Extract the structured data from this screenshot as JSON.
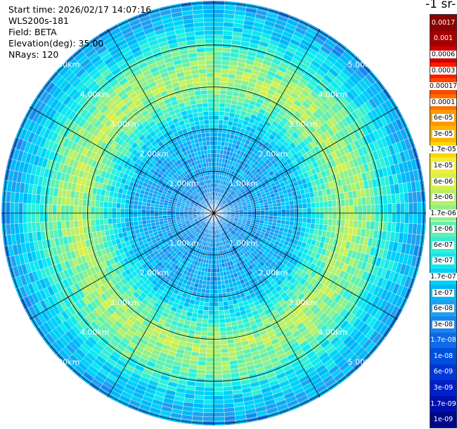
{
  "header": {
    "start_time": "Start time: 2026/02/17 14:07:16",
    "instrument": "WLS200s-181",
    "field": "Field: BETA",
    "elevation": "Elevation(deg): 35.00",
    "nrays": "NRays: 120"
  },
  "colorbar": {
    "unit_label": "-1 sr-",
    "labels": [
      "0.0017",
      "0.001",
      "0.0006",
      "0.0003",
      "0.00017",
      "0.0001",
      "6e-05",
      "3e-05",
      "1.7e-05",
      "1e-05",
      "6e-06",
      "3e-06",
      "1.7e-06",
      "1e-06",
      "6e-07",
      "3e-07",
      "1.7e-07",
      "1e-07",
      "6e-08",
      "3e-08",
      "1.7e-08",
      "1e-08",
      "6e-09",
      "3e-09",
      "1.7e-09",
      "1e-09"
    ],
    "colors": [
      "#8b0000",
      "#a50000",
      "#cc0000",
      "#ff1a00",
      "#ff4500",
      "#ff6f00",
      "#ff9800",
      "#ffb400",
      "#ffd700",
      "#f2ee3a",
      "#d7f046",
      "#b8f066",
      "#8ff08a",
      "#60f0b0",
      "#30f0d8",
      "#10e8f0",
      "#00d0f8",
      "#00b8f8",
      "#1fa0f0",
      "#1886ee",
      "#0e6ae8",
      "#0050e0",
      "#0038d6",
      "#0020c8",
      "#0010b0",
      "#000888"
    ],
    "light_text_count": 2
  },
  "chart_data": {
    "type": "ppi",
    "field": "BETA",
    "elevation_deg": 35.0,
    "n_rays": 120,
    "range_rings_km": [
      1,
      2,
      3,
      4,
      5
    ],
    "ring_labels": [
      "1.00km",
      "2.00km",
      "3.00km",
      "4.00km",
      "5.00km"
    ],
    "max_range_km": 5.05,
    "spokes_deg": [
      0,
      30,
      60,
      90,
      120,
      150,
      180,
      210,
      240,
      270,
      300,
      330
    ],
    "colorscale": "log",
    "value_range": [
      1e-09,
      0.0017
    ],
    "radial_profile": [
      {
        "range_km": 0.0,
        "beta": 3e-08
      },
      {
        "range_km": 1.0,
        "beta": 6e-08
      },
      {
        "range_km": 2.0,
        "beta": 1e-07
      },
      {
        "range_km": 2.6,
        "beta": 6e-07
      },
      {
        "range_km": 3.2,
        "beta": 3e-06
      },
      {
        "range_km": 3.8,
        "beta": 1e-06
      },
      {
        "range_km": 4.5,
        "beta": 1.7e-07
      },
      {
        "range_km": 5.0,
        "beta": 6e-08
      }
    ]
  }
}
